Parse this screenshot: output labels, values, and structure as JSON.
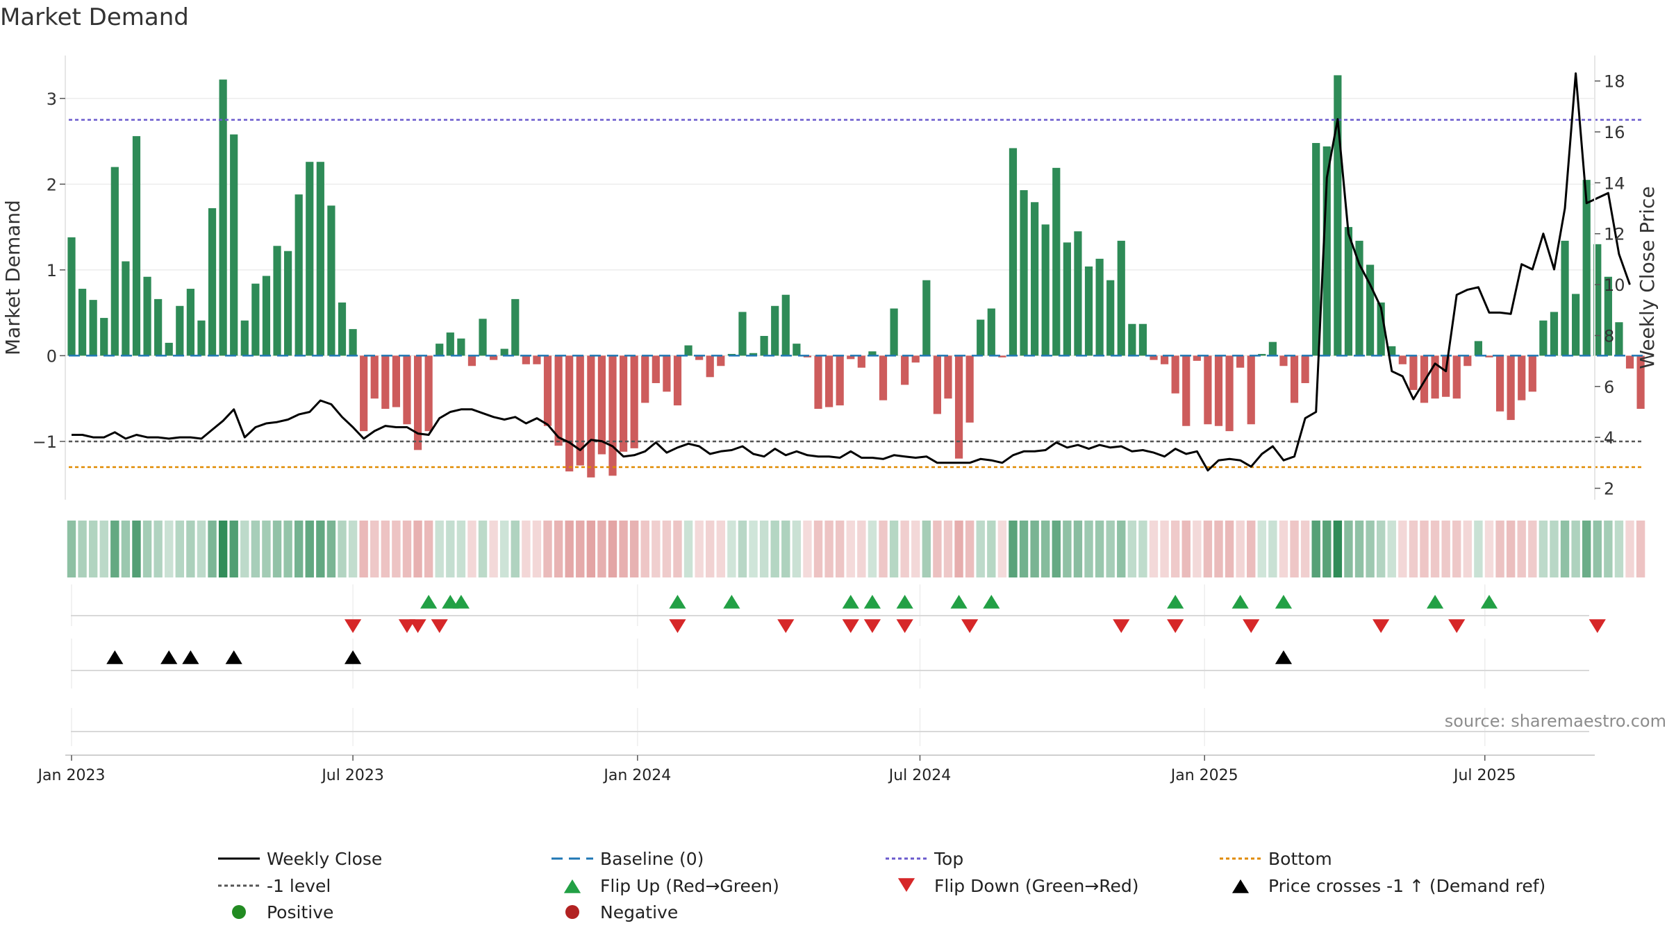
{
  "chart_data": {
    "type": "bar",
    "title": "Market Demand",
    "ylabel": "Market Demand",
    "ylabel_right": "Weekly Close Price",
    "ylim": [
      -1.68,
      3.5
    ],
    "ylim_right": [
      1.55,
      19.0
    ],
    "yticks_left": [
      {
        "v": 3,
        "label": "3"
      },
      {
        "v": 2,
        "label": "2"
      },
      {
        "v": 1,
        "label": "1"
      },
      {
        "v": 0,
        "label": "0"
      },
      {
        "v": -1,
        "label": "−1"
      }
    ],
    "yticks_right": [
      {
        "v": 18,
        "label": "18"
      },
      {
        "v": 16,
        "label": "16"
      },
      {
        "v": 14,
        "label": "14"
      },
      {
        "v": 12,
        "label": "12"
      },
      {
        "v": 10,
        "label": "10"
      },
      {
        "v": 8,
        "label": "8"
      },
      {
        "v": 6,
        "label": "6"
      },
      {
        "v": 4,
        "label": "4"
      },
      {
        "v": 2,
        "label": "2"
      }
    ],
    "xticks": [
      {
        "week": 1,
        "label": "Jan 2023"
      },
      {
        "week": 27,
        "label": "Jul 2023"
      },
      {
        "week": 53.3,
        "label": "Jan 2024"
      },
      {
        "week": 79.4,
        "label": "Jul 2024"
      },
      {
        "week": 105.7,
        "label": "Jan 2025"
      },
      {
        "week": 131.6,
        "label": "Jul 2025"
      }
    ],
    "reference_lines": {
      "top": 2.75,
      "bottom": -1.3,
      "minus_one": -1,
      "baseline": 0
    },
    "demand": [
      1.38,
      0.78,
      0.65,
      0.44,
      2.2,
      1.1,
      2.56,
      0.92,
      0.66,
      0.15,
      0.58,
      0.78,
      0.41,
      1.72,
      3.22,
      2.58,
      0.41,
      0.84,
      0.93,
      1.28,
      1.22,
      1.88,
      2.26,
      2.26,
      1.75,
      0.62,
      0.31,
      -0.88,
      -0.5,
      -0.62,
      -0.6,
      -0.8,
      -1.1,
      -0.88,
      0.14,
      0.27,
      0.2,
      -0.12,
      0.43,
      -0.05,
      0.08,
      0.66,
      -0.1,
      -0.1,
      -0.82,
      -1.05,
      -1.35,
      -1.28,
      -1.42,
      -1.15,
      -1.4,
      -1.12,
      -1.08,
      -0.55,
      -0.32,
      -0.42,
      -0.58,
      0.12,
      -0.05,
      -0.25,
      -0.12,
      0.02,
      0.51,
      0.03,
      0.23,
      0.58,
      0.71,
      0.14,
      -0.02,
      -0.62,
      -0.6,
      -0.58,
      -0.04,
      -0.14,
      0.05,
      -0.52,
      0.55,
      -0.34,
      -0.08,
      0.88,
      -0.68,
      -0.5,
      -1.2,
      -0.78,
      0.42,
      0.55,
      -0.02,
      2.42,
      1.93,
      1.79,
      1.53,
      2.19,
      1.32,
      1.45,
      1.04,
      1.13,
      0.88,
      1.34,
      0.37,
      0.37,
      -0.05,
      -0.1,
      -0.44,
      -0.82,
      -0.06,
      -0.8,
      -0.82,
      -0.88,
      -0.14,
      -0.8,
      0.02,
      0.16,
      -0.12,
      -0.55,
      -0.32,
      2.48,
      2.44,
      3.27,
      1.5,
      1.34,
      1.06,
      0.62,
      0.11,
      -0.1,
      -0.4,
      -0.55,
      -0.5,
      -0.48,
      -0.5,
      -0.12,
      0.17,
      -0.02,
      -0.65,
      -0.75,
      -0.52,
      -0.42,
      0.41,
      0.51,
      1.34,
      0.72,
      2.05,
      1.3,
      0.92,
      0.39,
      -0.15,
      -0.62
    ],
    "weekly_close": [
      4.1,
      4.1,
      4.0,
      4.0,
      4.2,
      3.95,
      4.1,
      4.0,
      4.0,
      3.95,
      4.0,
      4.0,
      3.95,
      4.3,
      4.65,
      5.1,
      4.0,
      4.4,
      4.55,
      4.6,
      4.7,
      4.9,
      5.0,
      5.45,
      5.3,
      4.8,
      4.4,
      3.95,
      4.25,
      4.45,
      4.4,
      4.4,
      4.15,
      4.1,
      4.75,
      5.0,
      5.1,
      5.1,
      4.95,
      4.8,
      4.7,
      4.8,
      4.55,
      4.75,
      4.5,
      4.0,
      3.8,
      3.5,
      3.9,
      3.85,
      3.65,
      3.25,
      3.3,
      3.45,
      3.8,
      3.4,
      3.6,
      3.75,
      3.65,
      3.35,
      3.45,
      3.5,
      3.65,
      3.35,
      3.25,
      3.55,
      3.3,
      3.45,
      3.3,
      3.25,
      3.25,
      3.2,
      3.45,
      3.2,
      3.2,
      3.15,
      3.3,
      3.25,
      3.2,
      3.25,
      3.0,
      3.0,
      3.0,
      3.0,
      3.15,
      3.1,
      3.0,
      3.3,
      3.45,
      3.45,
      3.5,
      3.8,
      3.6,
      3.7,
      3.55,
      3.7,
      3.6,
      3.65,
      3.45,
      3.5,
      3.4,
      3.25,
      3.55,
      3.35,
      3.45,
      2.7,
      3.1,
      3.15,
      3.1,
      2.85,
      3.35,
      3.65,
      3.1,
      3.25,
      4.75,
      5.0,
      14.2,
      16.5,
      12.0,
      10.8,
      10.0,
      9.1,
      6.6,
      6.4,
      5.5,
      6.2,
      6.9,
      6.6,
      9.6,
      9.8,
      9.9,
      8.9,
      8.9,
      8.85,
      10.8,
      10.6,
      12.0,
      10.6,
      13.0,
      18.3,
      13.2,
      13.4,
      13.6,
      11.2,
      10.0
    ],
    "flip_up_weeks": [
      34,
      36,
      37,
      57,
      62,
      73,
      75,
      78,
      83,
      86,
      103,
      109,
      113,
      127,
      132
    ],
    "flip_down_weeks": [
      27,
      32,
      33,
      35,
      57,
      67,
      73,
      75,
      78,
      84,
      98,
      103,
      110,
      122,
      129,
      142
    ],
    "price_cross_weeks": [
      5,
      10,
      12,
      16,
      27,
      113
    ],
    "watermark": "source: sharemaestro.com",
    "legend": [
      {
        "label": "Weekly Close",
        "symbol": "solid-line",
        "color": "#000000"
      },
      {
        "label": "Baseline (0)",
        "symbol": "dashed-line",
        "color": "#1f77b4"
      },
      {
        "label": "Top",
        "symbol": "dotted-line",
        "color": "#6a5acd"
      },
      {
        "label": "Bottom",
        "symbol": "dotted-line",
        "color": "#e08a00"
      },
      {
        "label": "-1 level",
        "symbol": "dotted-line",
        "color": "#555555"
      },
      {
        "label": "Flip Up (Red→Green)",
        "symbol": "triangle-up",
        "color": "#22a045"
      },
      {
        "label": "Flip Down (Green→Red)",
        "symbol": "triangle-down",
        "color": "#d62728"
      },
      {
        "label": "Price crosses -1 ↑ (Demand ref)",
        "symbol": "triangle-up",
        "color": "#000000"
      },
      {
        "label": "Positive",
        "symbol": "dot",
        "color": "#228b22"
      },
      {
        "label": "Negative",
        "symbol": "dot",
        "color": "#b22222"
      }
    ],
    "colors": {
      "positive_bar": "#2e8b57",
      "negative_bar": "#cd5c5c",
      "close_line": "#000000",
      "top_line": "#6a5acd",
      "bottom_line": "#e08a00",
      "minus_one_line": "#555555",
      "baseline": "#1f77b4",
      "flip_up": "#22a045",
      "flip_down": "#d62728",
      "price_cross": "#000000",
      "watermark": "#8c8c8c"
    }
  }
}
